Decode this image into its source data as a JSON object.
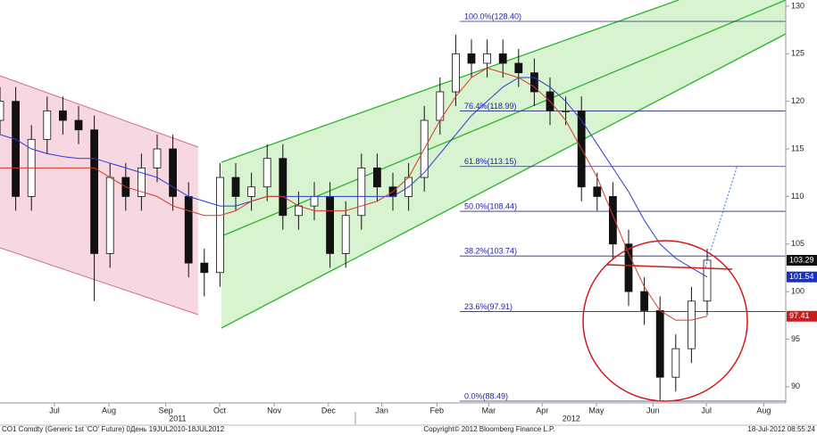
{
  "chart_data": {
    "type": "candlestick",
    "x": [
      0,
      2,
      4,
      6,
      8,
      10,
      12,
      14,
      16,
      18,
      20,
      22,
      24,
      26,
      28,
      30,
      32,
      34,
      36,
      38,
      40,
      42,
      44,
      46,
      48,
      50,
      52,
      54,
      56,
      58,
      60,
      62,
      64,
      66,
      68,
      70,
      72,
      74,
      76,
      78,
      80,
      82,
      84,
      86,
      88,
      90
    ],
    "open": [
      118,
      120,
      110,
      116,
      119,
      118,
      117,
      104,
      112,
      110,
      113,
      115,
      110,
      103,
      102,
      112,
      110,
      111,
      114,
      108,
      109,
      110,
      104,
      108,
      113,
      111,
      110,
      112,
      118,
      121,
      125,
      124,
      125,
      124,
      123,
      121,
      119,
      119,
      111,
      110,
      105,
      100,
      98,
      91,
      94,
      99
    ],
    "high": [
      121.5,
      121.5,
      117.5,
      120.5,
      120.5,
      119.5,
      118.5,
      113.5,
      113.5,
      114.5,
      116.5,
      116.5,
      111.5,
      104.5,
      113.5,
      113.5,
      112.5,
      115.5,
      115.5,
      110.5,
      111.5,
      111.5,
      109.5,
      114.5,
      114.5,
      112.5,
      113.5,
      119.5,
      122.5,
      127,
      126.5,
      126.5,
      126.5,
      125.5,
      124.5,
      122.5,
      120.5,
      120.5,
      112.5,
      111.5,
      106.5,
      101.5,
      99.5,
      95.5,
      100.5,
      104.5
    ],
    "low": [
      116.5,
      108.5,
      108.5,
      114.5,
      116.5,
      115.5,
      99,
      102.5,
      108.5,
      108.5,
      111.5,
      108.5,
      101.5,
      99.5,
      100.5,
      108.5,
      108.5,
      109.5,
      106.5,
      106.5,
      107.5,
      102.5,
      102.5,
      106.5,
      109.5,
      108.5,
      108.5,
      110.5,
      116.5,
      119.5,
      122.5,
      122.5,
      122.5,
      121.5,
      119.5,
      117.5,
      117.5,
      109.5,
      108.5,
      103.5,
      98.5,
      96.5,
      88.6,
      89.5,
      92.5,
      97.5
    ],
    "close": [
      120,
      110,
      116,
      119,
      118,
      117,
      104,
      112,
      110,
      113,
      115,
      110,
      103,
      102,
      112,
      110,
      111,
      114,
      108,
      109,
      110,
      104,
      108,
      113,
      111,
      110,
      112,
      118,
      121,
      125,
      124,
      125,
      124,
      123,
      121,
      119,
      119,
      111,
      110,
      105,
      100,
      98,
      91,
      94,
      99,
      103.3
    ],
    "series": [
      {
        "color": "#2a3bd6",
        "values": [
          116.5,
          116,
          115,
          114.5,
          114.2,
          114,
          114,
          113.5,
          113,
          112.5,
          112,
          111,
          110,
          109.5,
          109,
          109,
          109.5,
          110,
          110,
          110,
          110,
          110,
          110,
          110,
          110,
          110,
          111,
          112.5,
          114.5,
          116.5,
          118.5,
          120,
          121.5,
          122.5,
          122.5,
          121.5,
          120,
          118,
          115.5,
          113,
          110.5,
          107.5,
          105,
          103.5,
          102.5,
          101.54
        ]
      },
      {
        "color": "#d63a2a",
        "values": [
          113,
          113,
          113,
          113,
          113,
          113,
          113,
          112,
          111,
          110.5,
          110,
          109,
          108.5,
          108,
          108,
          108.5,
          109.5,
          110,
          110,
          109,
          108.5,
          108.5,
          108.5,
          109,
          109.5,
          110.5,
          112,
          115,
          118,
          120.5,
          122.5,
          123.5,
          123,
          122.5,
          121.5,
          120,
          118,
          115,
          112,
          108,
          104,
          100.5,
          98,
          97,
          97,
          97.41
        ]
      }
    ],
    "fib_levels": [
      {
        "value": 128.4,
        "label": "100.0%(128.40)"
      },
      {
        "value": 118.99,
        "label": "76.4%(118.99)"
      },
      {
        "value": 113.15,
        "label": "61.8%(113.15)"
      },
      {
        "value": 108.44,
        "label": "50.0%(108.44)"
      },
      {
        "value": 103.74,
        "label": "38.2%(103.74)"
      },
      {
        "value": 97.91,
        "label": "23.6%(97.91)"
      },
      {
        "value": 88.49,
        "label": "0.0%(88.49)"
      }
    ],
    "price_tags": [
      {
        "value": 103.29,
        "color": "#111111"
      },
      {
        "value": 101.54,
        "color": "#1a2fc4"
      },
      {
        "value": 97.41,
        "color": "#c81e1e"
      }
    ],
    "xlim": [
      0,
      100
    ],
    "ylim": [
      88.3,
      130.65
    ],
    "yticks": [
      90,
      95,
      100,
      105,
      110,
      115,
      120,
      125,
      130
    ],
    "xticks": [
      {
        "value": 6.93,
        "label": "Jul"
      },
      {
        "value": 13.86,
        "label": "Aug"
      },
      {
        "value": 21.1,
        "label": "Sep"
      },
      {
        "value": 27.95,
        "label": "Oct"
      },
      {
        "value": 34.9,
        "label": "Nov"
      },
      {
        "value": 41.8,
        "label": "Dec"
      },
      {
        "value": 48.6,
        "label": "Jan"
      },
      {
        "value": 55.6,
        "label": "Feb"
      },
      {
        "value": 62.2,
        "label": "Mar"
      },
      {
        "value": 69,
        "label": "Apr"
      },
      {
        "value": 75.9,
        "label": "May"
      },
      {
        "value": 83.1,
        "label": "Jun"
      },
      {
        "value": 89.9,
        "label": "Jul"
      },
      {
        "value": 97.2,
        "label": "Aug"
      }
    ],
    "year_labels": [
      {
        "value": 22.6,
        "label": "2011"
      },
      {
        "value": 72.7,
        "label": "2012"
      }
    ],
    "footer_left": "CO1 Comdty (Generic 1st 'CO' Future) 0День 19JUL2010-18JUL2012",
    "footer_center": "Copyright© 2012 Bloomberg Finance L.P.",
    "footer_right": "18-Jul-2012 08:55:24"
  }
}
